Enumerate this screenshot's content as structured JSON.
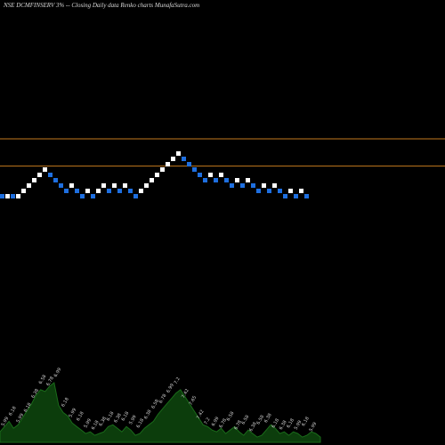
{
  "header": {
    "title": "NSE DCMFINSERV 3% -- Closing Daily data Renko charts MunafaSutra.com"
  },
  "colors": {
    "background": "#000000",
    "up_brick": "#ffffff",
    "down_brick": "#1e6fe0",
    "reference_line": "#c47a1e",
    "volume_fill": "#0c3d0c",
    "volume_stroke": "#1a6b1a",
    "label": "#cfcfcf"
  },
  "chart_data": {
    "type": "renko",
    "title": "NSE DCMFINSERV 3% -- Closing Daily data Renko charts MunafaSutra.com",
    "brick_size_percent": 3,
    "reference_lines": [
      8.3,
      7.1
    ],
    "bricks": [
      {
        "dir": "down",
        "price": 5.99
      },
      {
        "dir": "up",
        "price": 5.99
      },
      {
        "dir": "down",
        "price": 5.99
      },
      {
        "dir": "up",
        "price": 5.99
      },
      {
        "dir": "up",
        "price": 6.18
      },
      {
        "dir": "up",
        "price": 6.38
      },
      {
        "dir": "up",
        "price": 6.58
      },
      {
        "dir": "up",
        "price": 6.78
      },
      {
        "dir": "up",
        "price": 6.99
      },
      {
        "dir": "down",
        "price": 6.78
      },
      {
        "dir": "down",
        "price": 6.58
      },
      {
        "dir": "down",
        "price": 6.38
      },
      {
        "dir": "down",
        "price": 6.18
      },
      {
        "dir": "up",
        "price": 6.38
      },
      {
        "dir": "down",
        "price": 6.18
      },
      {
        "dir": "down",
        "price": 5.99
      },
      {
        "dir": "up",
        "price": 6.18
      },
      {
        "dir": "down",
        "price": 5.99
      },
      {
        "dir": "up",
        "price": 6.18
      },
      {
        "dir": "up",
        "price": 6.38
      },
      {
        "dir": "down",
        "price": 6.18
      },
      {
        "dir": "up",
        "price": 6.38
      },
      {
        "dir": "down",
        "price": 6.18
      },
      {
        "dir": "up",
        "price": 6.38
      },
      {
        "dir": "down",
        "price": 6.18
      },
      {
        "dir": "down",
        "price": 5.99
      },
      {
        "dir": "up",
        "price": 6.18
      },
      {
        "dir": "up",
        "price": 6.38
      },
      {
        "dir": "up",
        "price": 6.58
      },
      {
        "dir": "up",
        "price": 6.78
      },
      {
        "dir": "up",
        "price": 6.99
      },
      {
        "dir": "up",
        "price": 7.2
      },
      {
        "dir": "up",
        "price": 7.42
      },
      {
        "dir": "up",
        "price": 7.65
      },
      {
        "dir": "down",
        "price": 7.42
      },
      {
        "dir": "down",
        "price": 7.2
      },
      {
        "dir": "down",
        "price": 6.99
      },
      {
        "dir": "down",
        "price": 6.78
      },
      {
        "dir": "down",
        "price": 6.58
      },
      {
        "dir": "up",
        "price": 6.78
      },
      {
        "dir": "down",
        "price": 6.58
      },
      {
        "dir": "up",
        "price": 6.78
      },
      {
        "dir": "down",
        "price": 6.58
      },
      {
        "dir": "down",
        "price": 6.38
      },
      {
        "dir": "up",
        "price": 6.58
      },
      {
        "dir": "down",
        "price": 6.38
      },
      {
        "dir": "up",
        "price": 6.58
      },
      {
        "dir": "down",
        "price": 6.38
      },
      {
        "dir": "down",
        "price": 6.18
      },
      {
        "dir": "up",
        "price": 6.38
      },
      {
        "dir": "down",
        "price": 6.18
      },
      {
        "dir": "up",
        "price": 6.38
      },
      {
        "dir": "down",
        "price": 6.18
      },
      {
        "dir": "down",
        "price": 5.99
      },
      {
        "dir": "up",
        "price": 6.18
      },
      {
        "dir": "down",
        "price": 5.99
      },
      {
        "dir": "up",
        "price": 6.18
      },
      {
        "dir": "down",
        "price": 5.99
      }
    ],
    "volume": [
      0.6,
      0.9,
      1.2,
      0.8,
      1.0,
      1.4,
      1.8,
      2.2,
      2.7,
      3.0,
      2.9,
      3.2,
      3.4,
      2.1,
      1.7,
      1.5,
      1.1,
      0.9,
      0.7,
      0.5,
      0.6,
      0.4,
      0.5,
      0.6,
      0.9,
      1.0,
      0.8,
      0.6,
      0.9,
      0.7,
      0.4,
      0.5,
      0.8,
      1.0,
      1.2,
      1.6,
      1.9,
      2.2,
      2.5,
      2.8,
      3.0,
      2.6,
      2.2,
      1.8,
      1.4,
      1.0,
      0.9,
      0.7,
      0.6,
      0.8,
      0.5,
      0.7,
      0.9,
      0.6,
      0.4,
      0.7,
      0.5,
      0.3,
      0.4,
      0.7,
      1.0,
      0.8,
      0.5,
      0.6,
      0.4,
      0.6,
      0.5,
      0.3,
      0.4,
      0.6,
      0.5,
      0.3
    ],
    "volume_labels": [
      "5.99",
      "6.18",
      "5.99",
      "6.18",
      "6.38",
      "6.58",
      "6.78",
      "6.99",
      "6.18",
      "5.99",
      "6.18",
      "5.99",
      "6.18",
      "6.38",
      "6.18",
      "6.38",
      "6.18",
      "5.99",
      "6.18",
      "6.38",
      "6.58",
      "6.78",
      "6.99",
      "7.2",
      "7.42",
      "7.65",
      "7.42",
      "7.2",
      "6.99",
      "6.78",
      "6.58",
      "6.78",
      "6.58",
      "6.38",
      "6.58",
      "6.38",
      "6.18",
      "6.38",
      "6.18",
      "5.99",
      "6.18",
      "5.99"
    ],
    "xlabel": "",
    "ylabel": ""
  }
}
